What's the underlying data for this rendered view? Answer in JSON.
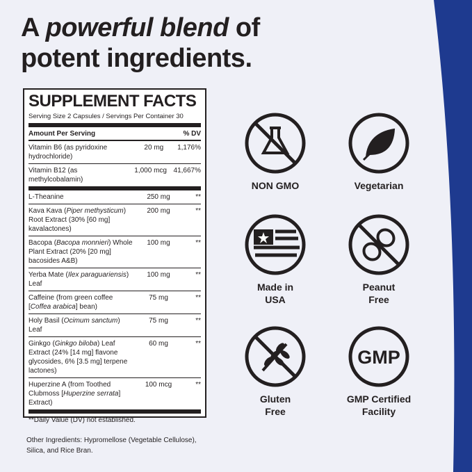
{
  "headline": {
    "line1": [
      {
        "text": "A "
      },
      {
        "text": "powerful blend",
        "italic": true
      },
      {
        "text": " of"
      }
    ],
    "line2": "potent ingredients."
  },
  "facts": {
    "title": "SUPPLEMENT FACTS",
    "serving": "Serving Size 2 Capsules / Servings Per Container 30",
    "header": {
      "amount": "Amount Per Serving",
      "dv": "% DV"
    },
    "rows": [
      {
        "name": [
          {
            "text": "Vitamin B6 (as pyridoxine hydrochloride)"
          }
        ],
        "amount": "20 mg",
        "dv": "1,176%"
      },
      {
        "name": [
          {
            "text": "Vitamin B12 (as methylcobalamin)"
          }
        ],
        "amount": "1,000 mcg",
        "dv": "41,667%",
        "thick_after": true
      },
      {
        "name": [
          {
            "text": "L-Theanine"
          }
        ],
        "amount": "250 mg",
        "dv": "**"
      },
      {
        "name": [
          {
            "text": "Kava Kava ("
          },
          {
            "text": "Piper methysticum",
            "italic": true
          },
          {
            "text": ") Root Extract (30% [60 mg] kavalactones)"
          }
        ],
        "amount": "200 mg",
        "dv": "**"
      },
      {
        "name": [
          {
            "text": "Bacopa ("
          },
          {
            "text": "Bacopa monnieri",
            "italic": true
          },
          {
            "text": ") Whole Plant Extract (20% [20 mg] bacosides A&B)"
          }
        ],
        "amount": "100 mg",
        "dv": "**"
      },
      {
        "name": [
          {
            "text": "Yerba Mate ("
          },
          {
            "text": "Ilex paraguariensis",
            "italic": true
          },
          {
            "text": ") Leaf"
          }
        ],
        "amount": "100 mg",
        "dv": "**"
      },
      {
        "name": [
          {
            "text": "Caffeine (from green coffee ["
          },
          {
            "text": "Coffea arabica",
            "italic": true
          },
          {
            "text": "] bean)"
          }
        ],
        "amount": "75 mg",
        "dv": "**"
      },
      {
        "name": [
          {
            "text": "Holy Basil ("
          },
          {
            "text": "Ocimum sanctum",
            "italic": true
          },
          {
            "text": ") Leaf"
          }
        ],
        "amount": "75 mg",
        "dv": "**"
      },
      {
        "name": [
          {
            "text": "Ginkgo ("
          },
          {
            "text": "Ginkgo biloba",
            "italic": true
          },
          {
            "text": ") Leaf Extract (24% [14 mg] flavone glycosides, 6% [3.5 mg] terpene lactones)"
          }
        ],
        "amount": "60 mg",
        "dv": "**"
      },
      {
        "name": [
          {
            "text": "Huperzine A (from Toothed Clubmoss ["
          },
          {
            "text": "Huperzine serrata",
            "italic": true
          },
          {
            "text": "] Extract)"
          }
        ],
        "amount": "100 mcg",
        "dv": "**"
      }
    ],
    "footnote": "**Daily Value (DV) not established."
  },
  "other_ingredients": "Other Ingredients: Hypromellose (Vegetable Cellulose), Silica, and Rice Bran.",
  "badges": [
    {
      "label": "NON GMO"
    },
    {
      "label": "Vegetarian"
    },
    {
      "label": "Made in\nUSA"
    },
    {
      "label": "Peanut\nFree"
    },
    {
      "label": "Gluten\nFree"
    },
    {
      "label": "GMP Certified\nFacility",
      "icon_text": "GMP"
    }
  ]
}
